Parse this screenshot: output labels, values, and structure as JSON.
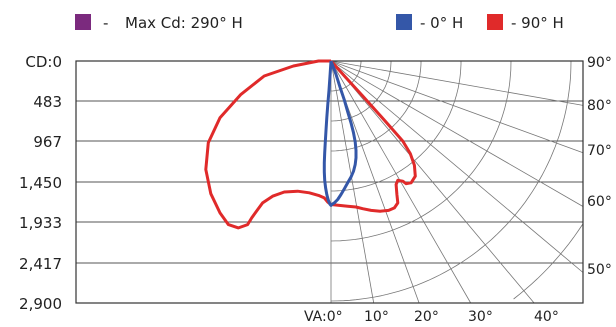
{
  "chart_data": {
    "type": "polar-candela",
    "legend": {
      "max_label": "Max Cd: 290° H",
      "max_dash": "-",
      "series_labels": [
        "- 0° H",
        "- 90° H"
      ]
    },
    "series_colors": [
      "#3457a8",
      "#e02a2a"
    ],
    "max_color": "#7b2a7e",
    "y_ticks": [
      "CD:0",
      "483",
      "967",
      "1,450",
      "1,933",
      "2,417",
      "2,900"
    ],
    "y_values": [
      0,
      483,
      967,
      1450,
      1933,
      2417,
      2900
    ],
    "vertical_angle_labels": [
      "VA:0°",
      "10°",
      "20°",
      "30°",
      "40°"
    ],
    "right_angle_labels": [
      "90°",
      "80°",
      "70°",
      "60°",
      "50°"
    ],
    "grid": true,
    "series": [
      {
        "name": "0° H",
        "points": [
          [
            0,
            0
          ],
          [
            160,
            60
          ],
          [
            320,
            110
          ],
          [
            470,
            160
          ],
          [
            610,
            200
          ],
          [
            740,
            240
          ],
          [
            860,
            270
          ],
          [
            970,
            290
          ],
          [
            1070,
            300
          ],
          [
            1160,
            300
          ],
          [
            1240,
            290
          ],
          [
            1320,
            270
          ],
          [
            1390,
            240
          ],
          [
            1460,
            200
          ],
          [
            1530,
            160
          ],
          [
            1600,
            120
          ],
          [
            1660,
            80
          ],
          [
            1700,
            40
          ],
          [
            1720,
            10
          ],
          [
            1730,
            0
          ],
          [
            1720,
            -10
          ],
          [
            1700,
            -20
          ],
          [
            1660,
            -35
          ],
          [
            1600,
            -50
          ],
          [
            1520,
            -65
          ],
          [
            1430,
            -75
          ],
          [
            1330,
            -80
          ],
          [
            1220,
            -80
          ],
          [
            1100,
            -75
          ],
          [
            970,
            -68
          ],
          [
            830,
            -60
          ],
          [
            680,
            -50
          ],
          [
            520,
            -38
          ],
          [
            350,
            -24
          ],
          [
            180,
            -12
          ],
          [
            0,
            0
          ]
        ]
      },
      {
        "name": "90° H",
        "points": [
          [
            0,
            0
          ],
          [
            200,
            180
          ],
          [
            420,
            380
          ],
          [
            620,
            560
          ],
          [
            800,
            720
          ],
          [
            960,
            860
          ],
          [
            1110,
            950
          ],
          [
            1250,
            1000
          ],
          [
            1380,
            1010
          ],
          [
            1460,
            960
          ],
          [
            1470,
            900
          ],
          [
            1440,
            860
          ],
          [
            1430,
            800
          ],
          [
            1480,
            780
          ],
          [
            1600,
            790
          ],
          [
            1700,
            800
          ],
          [
            1760,
            760
          ],
          [
            1790,
            690
          ],
          [
            1800,
            590
          ],
          [
            1790,
            480
          ],
          [
            1770,
            380
          ],
          [
            1750,
            300
          ],
          [
            1740,
            200
          ],
          [
            1730,
            100
          ],
          [
            1720,
            0
          ],
          [
            1690,
            -40
          ],
          [
            1640,
            -80
          ],
          [
            1610,
            -150
          ],
          [
            1580,
            -260
          ],
          [
            1560,
            -400
          ],
          [
            1570,
            -560
          ],
          [
            1620,
            -700
          ],
          [
            1700,
            -820
          ],
          [
            1810,
            -900
          ],
          [
            1880,
            -950
          ],
          [
            1960,
            -1000
          ],
          [
            2000,
            -1110
          ],
          [
            1960,
            -1230
          ],
          [
            1820,
            -1330
          ],
          [
            1590,
            -1440
          ],
          [
            1300,
            -1500
          ],
          [
            980,
            -1470
          ],
          [
            680,
            -1330
          ],
          [
            400,
            -1080
          ],
          [
            180,
            -800
          ],
          [
            60,
            -450
          ],
          [
            0,
            -150
          ],
          [
            0,
            0
          ]
        ]
      }
    ]
  }
}
